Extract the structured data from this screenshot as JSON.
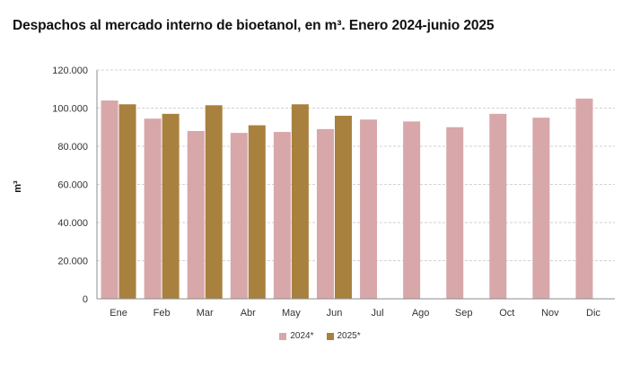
{
  "title": "Despachos al mercado interno de bioetanol, en m³. Enero 2024-junio 2025",
  "chart_data": {
    "type": "bar",
    "title": "Despachos al mercado interno de bioetanol, en m³. Enero 2024-junio 2025",
    "xlabel": "",
    "ylabel": "m³",
    "ylim": [
      0,
      120000
    ],
    "yticks": [
      0,
      20000,
      40000,
      60000,
      80000,
      100000,
      120000
    ],
    "ytick_labels": [
      "0",
      "20.000",
      "40.000",
      "60.000",
      "80.000",
      "100.000",
      "120.000"
    ],
    "categories": [
      "Ene",
      "Feb",
      "Mar",
      "Abr",
      "May",
      "Jun",
      "Jul",
      "Ago",
      "Sep",
      "Oct",
      "Nov",
      "Dic"
    ],
    "series": [
      {
        "name": "2024*",
        "color": "#d8a7aa",
        "values": [
          104000,
          94500,
          88000,
          87000,
          87500,
          89000,
          94000,
          93000,
          90000,
          97000,
          95000,
          105000
        ]
      },
      {
        "name": "2025*",
        "color": "#a8813e",
        "values": [
          102000,
          97000,
          101500,
          91000,
          102000,
          96000,
          null,
          null,
          null,
          null,
          null,
          null
        ]
      }
    ],
    "grid": true,
    "legend_position": "bottom"
  }
}
